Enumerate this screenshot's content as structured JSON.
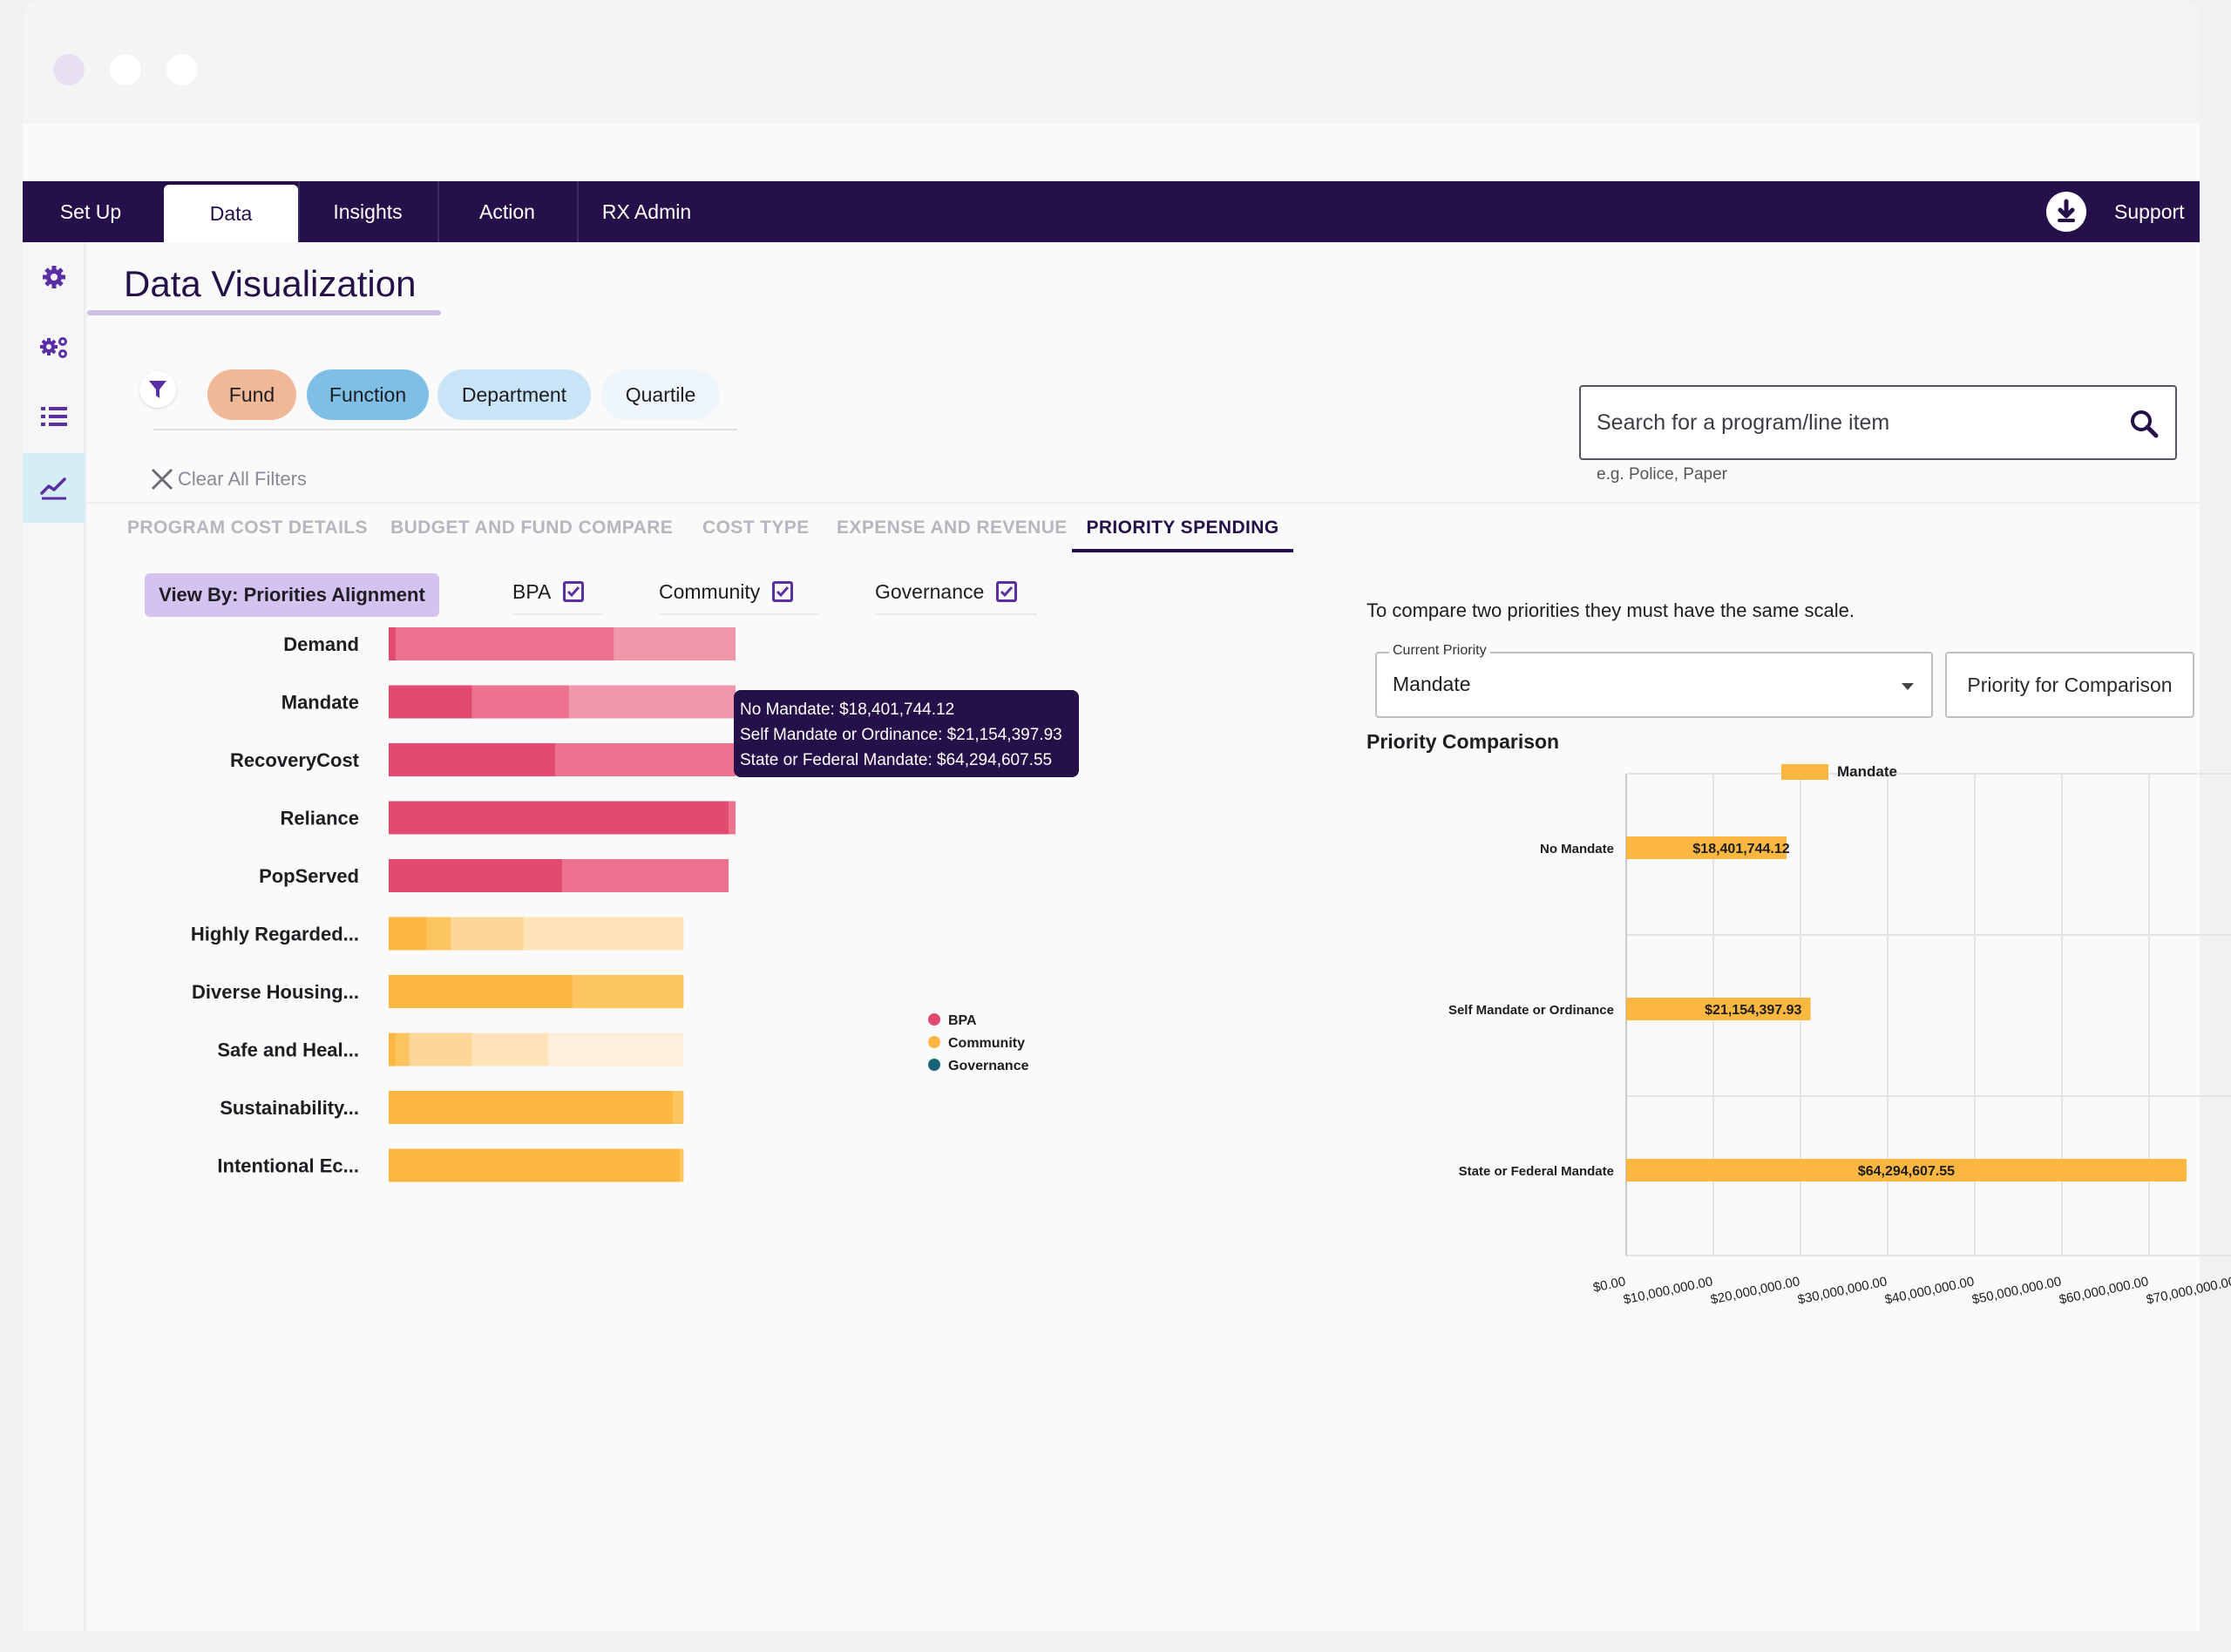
{
  "nav": {
    "tabs": [
      {
        "label": "Set Up"
      },
      {
        "label": "Data"
      },
      {
        "label": "Insights"
      },
      {
        "label": "Action"
      },
      {
        "label": "RX Admin"
      }
    ],
    "support": "Support"
  },
  "page": {
    "title": "Data Visualization"
  },
  "filters": {
    "chips": [
      "Fund",
      "Function",
      "Department",
      "Quartile"
    ],
    "clear_label": "Clear All Filters"
  },
  "search": {
    "placeholder": "Search for a program/line item",
    "hint": "e.g. Police, Paper"
  },
  "subtabs": [
    "PROGRAM COST DETAILS",
    "BUDGET AND FUND COMPARE",
    "COST TYPE",
    "EXPENSE AND REVENUE",
    "PRIORITY SPENDING"
  ],
  "view_by": "View By: Priorities Alignment",
  "checkboxes": [
    {
      "label": "BPA",
      "checked": true
    },
    {
      "label": "Community",
      "checked": true
    },
    {
      "label": "Governance",
      "checked": true
    }
  ],
  "tooltip": {
    "lines": [
      "No Mandate: $18,401,744.12",
      "Self Mandate or Ordinance: $21,154,397.93",
      "State or Federal Mandate: $64,294,607.55"
    ]
  },
  "comparison": {
    "note": "To compare two priorities they must have the same scale.",
    "current_label": "Current Priority",
    "current_value": "Mandate",
    "compare_button": "Priority for Comparison",
    "title": "Priority Comparison"
  },
  "chart_data": [
    {
      "type": "bar",
      "orientation": "horizontal",
      "stacked": true,
      "title": "",
      "categories": [
        "Demand",
        "Mandate",
        "RecoveryCost",
        "Reliance",
        "PopServed",
        "Highly Regarded...",
        "Diverse Housing...",
        "Safe and Heal...",
        "Sustainability...",
        "Intentional Ec..."
      ],
      "groups": [
        "BPA",
        "BPA",
        "BPA",
        "BPA",
        "BPA",
        "Community",
        "Community",
        "Community",
        "Community",
        "Community"
      ],
      "segments": [
        [
          2,
          63,
          35
        ],
        [
          24,
          28,
          48
        ],
        [
          48,
          52
        ],
        [
          98,
          2
        ],
        [
          50,
          48
        ],
        [
          11,
          7,
          21,
          46
        ],
        [
          53,
          32
        ],
        [
          2,
          4,
          18,
          22,
          39
        ],
        [
          82,
          3
        ],
        [
          84,
          1
        ]
      ],
      "legend": [
        "BPA",
        "Community",
        "Governance"
      ],
      "legend_position": "right",
      "colors": {
        "BPA": "#e34a6f",
        "Community": "#fbb73f",
        "Governance": "#1a6277"
      }
    },
    {
      "type": "bar",
      "orientation": "horizontal",
      "title": "Priority Comparison",
      "series": [
        {
          "name": "Mandate",
          "values": [
            18401744.12,
            21154397.93,
            64294607.55
          ]
        }
      ],
      "categories": [
        "No Mandate",
        "Self Mandate or Ordinance",
        "State or Federal Mandate"
      ],
      "data_labels": [
        "$18,401,744.12",
        "$21,154,397.93",
        "$64,294,607.55"
      ],
      "xlim": [
        0,
        70000000
      ],
      "x_ticks": [
        0,
        10000000,
        20000000,
        30000000,
        40000000,
        50000000,
        60000000,
        70000000
      ],
      "x_tick_labels": [
        "$0.00",
        "$10,000,000.00",
        "$20,000,000.00",
        "$30,000,000.00",
        "$40,000,000.00",
        "$50,000,000.00",
        "$60,000,000.00",
        "$70,000,000.00"
      ],
      "legend_position": "top",
      "grid": true,
      "colors": {
        "Mandate": "#fbb73f"
      }
    }
  ]
}
